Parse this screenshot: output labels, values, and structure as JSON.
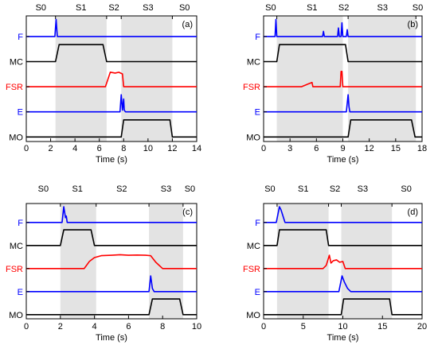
{
  "colors": {
    "F": "#0000ff",
    "MC": "#000000",
    "FSR": "#ff0000",
    "E": "#0000ff",
    "MO": "#000000",
    "shade": "#e3e3e3"
  },
  "chart_data": [
    {
      "type": "line",
      "panel_label": "(a)",
      "xlabel": "Time (s)",
      "xlim": [
        0,
        14
      ],
      "xticks": [
        "0",
        "2",
        "4",
        "6",
        "8",
        "10",
        "12",
        "14"
      ],
      "tracks": [
        "F",
        "MC",
        "FSR",
        "E",
        "MO"
      ],
      "phase_labels": [
        {
          "label": "S0",
          "t": 1.2
        },
        {
          "label": "S1",
          "t": 4.5
        },
        {
          "label": "S2",
          "t": 7.2
        },
        {
          "label": "S3",
          "t": 10.0
        },
        {
          "label": "S0",
          "t": 13.0
        }
      ],
      "phase_bounds": [
        2.4,
        6.6,
        7.8,
        12.0
      ],
      "shaded": [
        [
          2.4,
          6.6
        ],
        [
          7.8,
          12.0
        ]
      ],
      "series": [
        {
          "name": "F",
          "x": [
            0,
            2.35,
            2.45,
            2.55,
            14
          ],
          "y": [
            0,
            0,
            1,
            0,
            0
          ]
        },
        {
          "name": "MC",
          "x": [
            0,
            2.4,
            2.7,
            6.3,
            6.6,
            14
          ],
          "y": [
            0,
            0,
            1,
            1,
            0,
            0
          ]
        },
        {
          "name": "FSR",
          "x": [
            0,
            6.5,
            6.9,
            7.3,
            7.6,
            7.9,
            8.0,
            14
          ],
          "y": [
            0,
            0,
            0.85,
            0.8,
            0.85,
            0.75,
            0,
            0
          ]
        },
        {
          "name": "E",
          "x": [
            0,
            7.7,
            7.8,
            7.9,
            8.0,
            8.05,
            8.15,
            14
          ],
          "y": [
            0,
            0,
            1,
            0.1,
            0.75,
            0.1,
            0,
            0
          ]
        },
        {
          "name": "MO",
          "x": [
            0,
            7.8,
            8.0,
            11.8,
            12.0,
            14
          ],
          "y": [
            0,
            0,
            1,
            1,
            0,
            0
          ]
        }
      ]
    },
    {
      "type": "line",
      "panel_label": "(b)",
      "xlabel": "Time (s)",
      "xlim": [
        0,
        18
      ],
      "xticks": [
        "0",
        "3",
        "6",
        "9",
        "12",
        "15",
        "18"
      ],
      "tracks": [
        "F",
        "MC",
        "FSR",
        "E",
        "MO"
      ],
      "phase_labels": [
        {
          "label": "S0",
          "t": 0.8
        },
        {
          "label": "S1",
          "t": 5.5
        },
        {
          "label": "S2",
          "t": 9.1
        },
        {
          "label": "S3",
          "t": 13.5
        },
        {
          "label": "S0",
          "t": 17.5
        }
      ],
      "phase_bounds": [
        1.5,
        9.6,
        17.3
      ],
      "shaded": [
        [
          1.5,
          9.0
        ],
        [
          9.6,
          17.3
        ]
      ],
      "series": [
        {
          "name": "F",
          "x": [
            0,
            1.3,
            1.4,
            1.5,
            6.7,
            6.8,
            6.9,
            8.4,
            8.5,
            8.6,
            8.8,
            8.9,
            9.0,
            9.4,
            9.5,
            9.6,
            18
          ],
          "y": [
            0,
            0,
            1,
            0,
            0,
            0.3,
            0,
            0,
            0.5,
            0,
            0,
            0.8,
            0,
            0,
            0.4,
            0,
            0
          ]
        },
        {
          "name": "MC",
          "x": [
            0,
            1.5,
            1.8,
            9.3,
            9.6,
            18
          ],
          "y": [
            0,
            0,
            1,
            1,
            0,
            0
          ]
        },
        {
          "name": "FSR",
          "x": [
            0,
            4.3,
            5.0,
            5.5,
            5.6,
            8.7,
            8.8,
            8.9,
            9.0,
            18
          ],
          "y": [
            0,
            0,
            0.15,
            0.25,
            0,
            0,
            0.9,
            0.9,
            0,
            0
          ]
        },
        {
          "name": "E",
          "x": [
            0,
            9.4,
            9.5,
            9.6,
            9.7,
            9.8,
            18
          ],
          "y": [
            0,
            0,
            0.5,
            1,
            0.3,
            0,
            0
          ]
        },
        {
          "name": "MO",
          "x": [
            0,
            9.6,
            9.9,
            16.8,
            17.2,
            18
          ],
          "y": [
            0,
            0,
            1,
            1,
            0,
            0
          ]
        }
      ]
    },
    {
      "type": "line",
      "panel_label": "(c)",
      "xlabel": "Time (s)",
      "xlim": [
        0,
        10
      ],
      "xticks": [
        "0",
        "2",
        "4",
        "6",
        "8",
        "10"
      ],
      "tracks": [
        "F",
        "MC",
        "FSR",
        "E",
        "MO"
      ],
      "phase_labels": [
        {
          "label": "S0",
          "t": 1.0
        },
        {
          "label": "S1",
          "t": 3.0
        },
        {
          "label": "S2",
          "t": 5.6
        },
        {
          "label": "S3",
          "t": 8.2
        },
        {
          "label": "S0",
          "t": 9.6
        }
      ],
      "phase_bounds": [
        2.0,
        4.1,
        7.2,
        9.2
      ],
      "shaded": [
        [
          2.0,
          4.1
        ],
        [
          7.2,
          9.2
        ]
      ],
      "series": [
        {
          "name": "F",
          "x": [
            0,
            2.1,
            2.2,
            2.3,
            2.35,
            2.4,
            10
          ],
          "y": [
            0,
            0,
            1,
            0.3,
            0.4,
            0,
            0
          ]
        },
        {
          "name": "MC",
          "x": [
            0,
            2.0,
            2.2,
            3.8,
            4.0,
            10
          ],
          "y": [
            0,
            0,
            1,
            1,
            0,
            0
          ]
        },
        {
          "name": "FSR",
          "x": [
            0,
            3.4,
            3.7,
            4.0,
            4.4,
            5.0,
            5.5,
            6.0,
            6.5,
            7.0,
            7.3,
            7.6,
            8.0,
            10
          ],
          "y": [
            0,
            0,
            0.45,
            0.7,
            0.82,
            0.85,
            0.88,
            0.85,
            0.86,
            0.85,
            0.82,
            0.4,
            0,
            0
          ]
        },
        {
          "name": "E",
          "x": [
            0,
            7.2,
            7.3,
            7.4,
            7.5,
            10
          ],
          "y": [
            0,
            0,
            1,
            0.2,
            0,
            0
          ]
        },
        {
          "name": "MO",
          "x": [
            0,
            7.2,
            7.4,
            9.0,
            9.2,
            10
          ],
          "y": [
            0,
            0,
            1,
            1,
            0,
            0
          ]
        }
      ]
    },
    {
      "type": "line",
      "panel_label": "(d)",
      "xlabel": "Time (s)",
      "xlim": [
        0,
        20
      ],
      "xticks": [
        "0",
        "5",
        "10",
        "15",
        "20"
      ],
      "tracks": [
        "F",
        "MC",
        "FSR",
        "E",
        "MO"
      ],
      "phase_labels": [
        {
          "label": "S0",
          "t": 0.8
        },
        {
          "label": "S1",
          "t": 5.0
        },
        {
          "label": "S2",
          "t": 9.0
        },
        {
          "label": "S3",
          "t": 12.5
        },
        {
          "label": "S0",
          "t": 18.0
        }
      ],
      "phase_bounds": [
        1.7,
        8.2,
        9.8,
        16.2
      ],
      "shaded": [
        [
          1.7,
          8.2
        ],
        [
          9.8,
          16.2
        ]
      ],
      "series": [
        {
          "name": "F",
          "x": [
            0,
            1.6,
            2.0,
            2.2,
            2.7,
            20
          ],
          "y": [
            0,
            0,
            1,
            0.8,
            0,
            0
          ]
        },
        {
          "name": "MC",
          "x": [
            0,
            1.7,
            2.0,
            7.9,
            8.2,
            20
          ],
          "y": [
            0,
            0,
            1,
            1,
            0,
            0
          ]
        },
        {
          "name": "FSR",
          "x": [
            0,
            7.5,
            7.9,
            8.3,
            8.5,
            8.8,
            9.2,
            9.6,
            10.0,
            10.3,
            20
          ],
          "y": [
            0,
            0,
            0.2,
            0.85,
            0.35,
            0.5,
            0.55,
            0.4,
            0.45,
            0,
            0
          ]
        },
        {
          "name": "E",
          "x": [
            0,
            9.5,
            9.9,
            10.2,
            10.6,
            11.0,
            20
          ],
          "y": [
            0,
            0,
            1,
            0.6,
            0.2,
            0,
            0
          ]
        },
        {
          "name": "MO",
          "x": [
            0,
            9.8,
            10.1,
            15.9,
            16.2,
            20
          ],
          "y": [
            0,
            0,
            1,
            1,
            0,
            0
          ]
        }
      ]
    }
  ]
}
